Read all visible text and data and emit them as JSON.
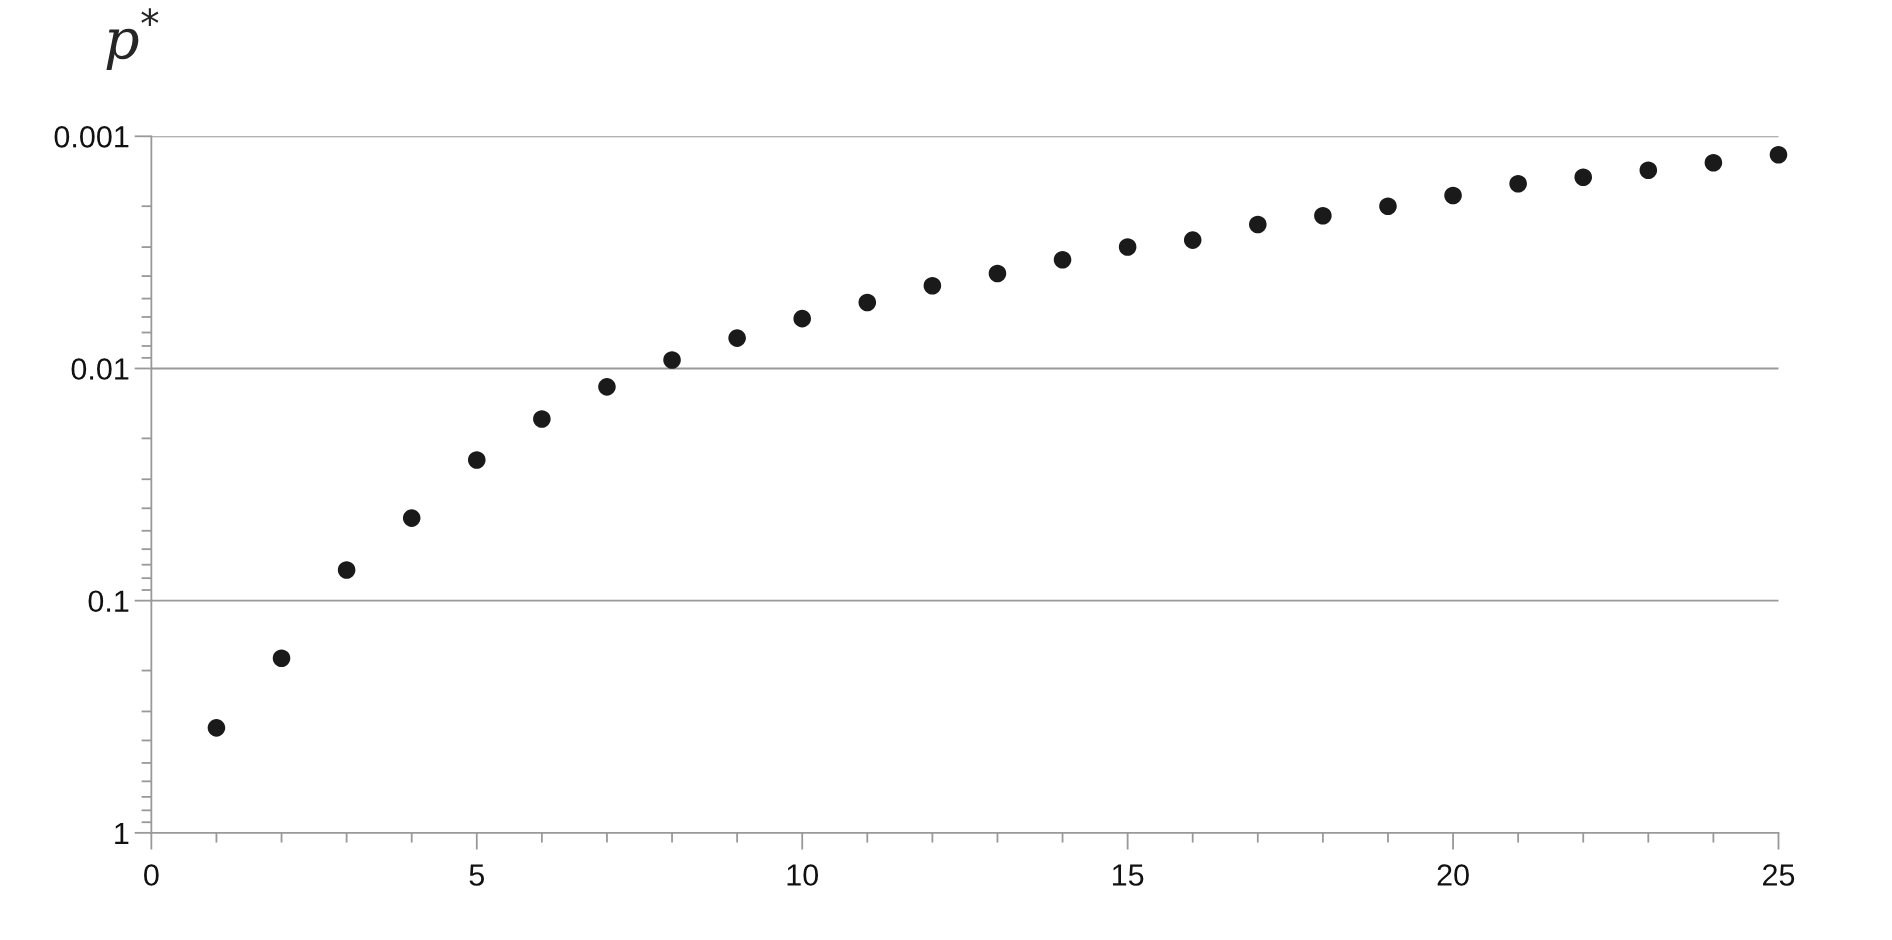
{
  "chart_data": {
    "type": "scatter",
    "ylabel": "p$^{*}$",
    "x": [
      1,
      2,
      3,
      4,
      5,
      6,
      7,
      8,
      9,
      10,
      11,
      12,
      13,
      14,
      15,
      16,
      17,
      18,
      19,
      20,
      21,
      22,
      23,
      24,
      25
    ],
    "series": [
      {
        "color": "#1a1a1a",
        "values": [
          0.353,
          0.177,
          0.0738,
          0.0441,
          0.0248,
          0.0165,
          0.012,
          0.0092,
          0.0074,
          0.0061,
          0.0052,
          0.0044,
          0.0039,
          0.0034,
          0.003,
          0.0028,
          0.0024,
          0.0022,
          0.002,
          0.0018,
          0.0016,
          0.0015,
          0.0014,
          0.0013,
          0.0012
        ]
      }
    ],
    "log": "y",
    "xlim": [
      0,
      25
    ],
    "xticks": [
      0,
      5,
      10,
      15,
      20,
      25
    ],
    "ylim": [
      1,
      0.001
    ],
    "yticks": [
      1,
      0.1,
      0.01,
      0.001
    ],
    "grid": "y",
    "marker": "circle"
  }
}
